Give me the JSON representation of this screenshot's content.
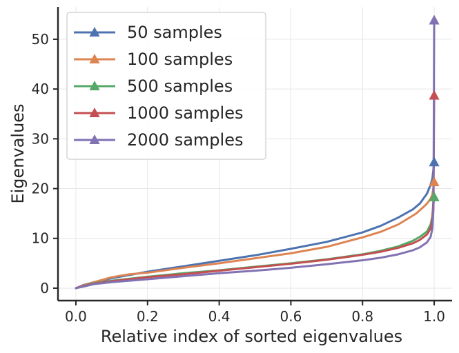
{
  "chart_data": {
    "type": "line",
    "title": "",
    "xlabel": "Relative index of sorted eigenvalues",
    "ylabel": "Eigenvalues",
    "xlim": [
      -0.05,
      1.05
    ],
    "ylim": [
      -2.5,
      56.5
    ],
    "xticks": [
      0.0,
      0.2,
      0.4,
      0.6,
      0.8,
      1.0
    ],
    "xtick_labels": [
      "0.0",
      "0.2",
      "0.4",
      "0.6",
      "0.8",
      "1.0"
    ],
    "yticks": [
      0,
      10,
      20,
      30,
      40,
      50
    ],
    "ytick_labels": [
      "0",
      "10",
      "20",
      "30",
      "40",
      "50"
    ],
    "grid": true,
    "legend_position": "top-left",
    "marker": "triangle at maximum eigenvalue",
    "series": [
      {
        "name": "50 samples",
        "color": "#4c72b0",
        "x": [
          0,
          0.02,
          0.05,
          0.1,
          0.2,
          0.3,
          0.4,
          0.5,
          0.6,
          0.7,
          0.8,
          0.85,
          0.9,
          0.94,
          0.96,
          0.98,
          0.99,
          0.995,
          1.0
        ],
        "y": [
          0,
          0.6,
          1.2,
          2.0,
          3.3,
          4.4,
          5.5,
          6.6,
          7.9,
          9.3,
          11.2,
          12.5,
          14.2,
          15.8,
          17.0,
          19.0,
          20.8,
          22.0,
          25.3
        ]
      },
      {
        "name": "100 samples",
        "color": "#dd8452",
        "x": [
          0,
          0.02,
          0.05,
          0.1,
          0.15,
          0.2,
          0.3,
          0.4,
          0.5,
          0.6,
          0.7,
          0.8,
          0.85,
          0.9,
          0.95,
          0.97,
          0.98,
          0.99,
          0.995,
          1.0
        ],
        "y": [
          0,
          0.5,
          1.2,
          2.2,
          2.8,
          3.1,
          4.1,
          5.0,
          6.0,
          7.0,
          8.3,
          10.2,
          11.3,
          12.8,
          15.0,
          16.3,
          17.0,
          18.0,
          18.8,
          21.3
        ]
      },
      {
        "name": "500 samples",
        "color": "#55a868",
        "x": [
          0,
          0.02,
          0.05,
          0.1,
          0.2,
          0.3,
          0.4,
          0.5,
          0.6,
          0.7,
          0.8,
          0.85,
          0.9,
          0.94,
          0.96,
          0.98,
          0.99,
          0.995,
          1.0
        ],
        "y": [
          0,
          0.4,
          1.0,
          1.5,
          2.3,
          3.0,
          3.6,
          4.3,
          5.0,
          5.8,
          6.8,
          7.5,
          8.4,
          9.5,
          10.3,
          11.4,
          12.8,
          14.5,
          18.3
        ]
      },
      {
        "name": "1000 samples",
        "color": "#c44e52",
        "x": [
          0,
          0.02,
          0.05,
          0.1,
          0.2,
          0.3,
          0.4,
          0.5,
          0.6,
          0.7,
          0.8,
          0.85,
          0.9,
          0.94,
          0.96,
          0.98,
          0.99,
          0.995,
          0.998,
          1.0
        ],
        "y": [
          0,
          0.4,
          0.9,
          1.4,
          2.2,
          2.8,
          3.5,
          4.2,
          4.9,
          5.7,
          6.7,
          7.3,
          8.1,
          9.0,
          9.7,
          10.8,
          12.0,
          14.0,
          18.0,
          38.7
        ]
      },
      {
        "name": "2000 samples",
        "color": "#8172b3",
        "x": [
          0,
          0.02,
          0.05,
          0.1,
          0.2,
          0.3,
          0.4,
          0.5,
          0.6,
          0.7,
          0.8,
          0.85,
          0.9,
          0.94,
          0.96,
          0.98,
          0.99,
          0.995,
          0.998,
          1.0
        ],
        "y": [
          0,
          0.3,
          0.8,
          1.2,
          1.8,
          2.4,
          3.0,
          3.5,
          4.1,
          4.8,
          5.6,
          6.1,
          6.8,
          7.6,
          8.2,
          9.2,
          10.3,
          12.0,
          16.0,
          53.8
        ]
      }
    ]
  }
}
